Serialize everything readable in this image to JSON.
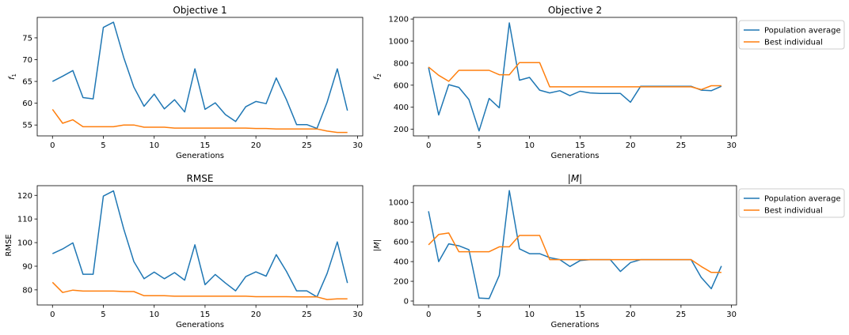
{
  "chart_data": [
    {
      "type": "line",
      "title": "Objective 1",
      "xlabel": "Generations",
      "ylabel": "f1",
      "xlim": [
        -1.5,
        30.5
      ],
      "ylim": [
        52.5,
        79.7
      ],
      "xticks": [
        0,
        5,
        10,
        15,
        20,
        25,
        30
      ],
      "yticks": [
        55,
        60,
        65,
        70,
        75
      ],
      "x": [
        0,
        1,
        2,
        3,
        4,
        5,
        6,
        7,
        8,
        9,
        10,
        11,
        12,
        13,
        14,
        15,
        16,
        17,
        18,
        19,
        20,
        21,
        22,
        23,
        24,
        25,
        26,
        27,
        28,
        29
      ],
      "series": [
        {
          "name": "Population average",
          "color": "#1f77b4",
          "values": [
            65.0,
            66.2,
            67.5,
            61.3,
            61.0,
            77.4,
            78.6,
            70.5,
            63.7,
            59.3,
            62.1,
            58.7,
            60.8,
            58.0,
            67.9,
            58.6,
            60.1,
            57.4,
            55.8,
            59.2,
            60.4,
            59.9,
            65.8,
            60.8,
            55.1,
            55.1,
            54.2,
            60.2,
            67.9,
            58.3
          ]
        },
        {
          "name": "Best individual",
          "color": "#ff7f0e",
          "values": [
            58.6,
            55.4,
            56.2,
            54.6,
            54.6,
            54.6,
            54.6,
            55.0,
            55.0,
            54.5,
            54.5,
            54.5,
            54.3,
            54.3,
            54.3,
            54.3,
            54.3,
            54.3,
            54.3,
            54.3,
            54.2,
            54.2,
            54.1,
            54.1,
            54.1,
            54.1,
            54.1,
            53.6,
            53.3,
            53.3
          ]
        }
      ]
    },
    {
      "type": "line",
      "title": "Objective 2",
      "xlabel": "Generations",
      "ylabel": "f2",
      "xlim": [
        -1.5,
        30.5
      ],
      "ylim": [
        140,
        1215
      ],
      "xticks": [
        0,
        5,
        10,
        15,
        20,
        25,
        30
      ],
      "yticks": [
        200,
        400,
        600,
        800,
        1000,
        1200
      ],
      "legend": "outside-right",
      "legend_entries": [
        "Population average",
        "Best individual"
      ],
      "x": [
        0,
        1,
        2,
        3,
        4,
        5,
        6,
        7,
        8,
        9,
        10,
        11,
        12,
        13,
        14,
        15,
        16,
        17,
        18,
        19,
        20,
        21,
        22,
        23,
        24,
        25,
        26,
        27,
        28,
        29
      ],
      "series": [
        {
          "name": "Population average",
          "color": "#1f77b4",
          "values": [
            760,
            330,
            605,
            580,
            470,
            185,
            480,
            395,
            1165,
            645,
            670,
            555,
            530,
            550,
            505,
            545,
            530,
            525,
            525,
            525,
            445,
            590,
            590,
            590,
            590,
            590,
            590,
            555,
            550,
            590
          ]
        },
        {
          "name": "Best individual",
          "color": "#ff7f0e",
          "values": [
            765,
            690,
            635,
            735,
            735,
            735,
            735,
            695,
            695,
            805,
            805,
            805,
            585,
            585,
            585,
            585,
            585,
            585,
            585,
            585,
            585,
            585,
            585,
            585,
            585,
            585,
            585,
            560,
            595,
            595
          ]
        }
      ]
    },
    {
      "type": "line",
      "title": "RMSE",
      "xlabel": "Generations",
      "ylabel": "RMSE",
      "xlim": [
        -1.5,
        30.5
      ],
      "ylim": [
        73.6,
        124.1
      ],
      "xticks": [
        0,
        5,
        10,
        15,
        20,
        25,
        30
      ],
      "yticks": [
        80,
        90,
        100,
        110,
        120
      ],
      "x": [
        0,
        1,
        2,
        3,
        4,
        5,
        6,
        7,
        8,
        9,
        10,
        11,
        12,
        13,
        14,
        15,
        16,
        17,
        18,
        19,
        20,
        21,
        22,
        23,
        24,
        25,
        26,
        27,
        28,
        29
      ],
      "series": [
        {
          "name": "Population average",
          "color": "#1f77b4",
          "values": [
            95.3,
            97.3,
            99.9,
            86.6,
            86.6,
            119.7,
            121.9,
            105.8,
            92.0,
            84.7,
            87.5,
            84.7,
            87.3,
            84.1,
            99.1,
            82.2,
            86.5,
            82.9,
            79.6,
            85.6,
            87.6,
            85.8,
            94.9,
            87.8,
            79.6,
            79.6,
            77.0,
            86.9,
            100.3,
            82.9
          ]
        },
        {
          "name": "Best individual",
          "color": "#ff7f0e",
          "values": [
            83.2,
            78.9,
            79.9,
            79.5,
            79.5,
            79.5,
            79.5,
            79.3,
            79.3,
            77.5,
            77.5,
            77.5,
            77.3,
            77.3,
            77.3,
            77.3,
            77.3,
            77.3,
            77.3,
            77.3,
            77.1,
            77.1,
            77.1,
            77.1,
            77.0,
            77.0,
            77.0,
            75.9,
            76.2,
            76.2
          ]
        }
      ]
    },
    {
      "type": "line",
      "title": "|M|",
      "xlabel": "Generations",
      "ylabel": "|M|",
      "xlim": [
        -1.5,
        30.5
      ],
      "ylim": [
        -40,
        1170
      ],
      "xticks": [
        0,
        5,
        10,
        15,
        20,
        25,
        30
      ],
      "yticks": [
        0,
        200,
        400,
        600,
        800,
        1000
      ],
      "legend": "outside-right",
      "legend_entries": [
        "Population average",
        "Best individual"
      ],
      "x": [
        0,
        1,
        2,
        3,
        4,
        5,
        6,
        7,
        8,
        9,
        10,
        11,
        12,
        13,
        14,
        15,
        16,
        17,
        18,
        19,
        20,
        21,
        22,
        23,
        24,
        25,
        26,
        27,
        28,
        29
      ],
      "series": [
        {
          "name": "Population average",
          "color": "#1f77b4",
          "values": [
            910,
            400,
            580,
            560,
            520,
            30,
            25,
            260,
            1120,
            530,
            480,
            480,
            440,
            420,
            350,
            410,
            420,
            420,
            420,
            300,
            390,
            420,
            420,
            420,
            420,
            420,
            420,
            240,
            125,
            355
          ]
        },
        {
          "name": "Best individual",
          "color": "#ff7f0e",
          "values": [
            570,
            675,
            690,
            500,
            500,
            500,
            500,
            550,
            550,
            665,
            665,
            665,
            420,
            420,
            420,
            420,
            420,
            420,
            420,
            420,
            420,
            420,
            420,
            420,
            420,
            420,
            420,
            350,
            290,
            290
          ]
        }
      ]
    }
  ]
}
